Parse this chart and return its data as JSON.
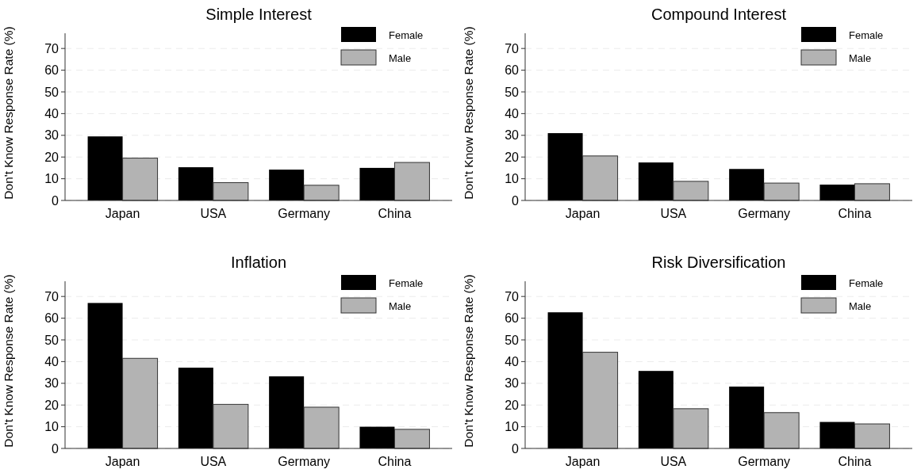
{
  "chart_data": [
    {
      "type": "bar",
      "title": "Simple Interest",
      "ylabel": "Don't Know Response Rate (%)",
      "categories": [
        "Japan",
        "USA",
        "Germany",
        "China"
      ],
      "series": [
        {
          "name": "Female",
          "color": "#000000",
          "values": [
            29.5,
            15.3,
            14.2,
            15
          ]
        },
        {
          "name": "Male",
          "color": "#b3b3b3",
          "values": [
            19.5,
            8.2,
            7,
            17.5
          ]
        }
      ],
      "ylim": [
        0,
        77
      ],
      "yticks": [
        0,
        10,
        20,
        30,
        40,
        50,
        60,
        70
      ],
      "grid": "y",
      "legend": "top right"
    },
    {
      "type": "bar",
      "title": "Compound Interest",
      "ylabel": "Don't Know Response Rate (%)",
      "categories": [
        "Japan",
        "USA",
        "Germany",
        "China"
      ],
      "series": [
        {
          "name": "Female",
          "color": "#000000",
          "values": [
            31,
            17.5,
            14.5,
            7.3
          ]
        },
        {
          "name": "Male",
          "color": "#b3b3b3",
          "values": [
            20.5,
            8.8,
            8,
            7.7
          ]
        }
      ],
      "ylim": [
        0,
        77
      ],
      "yticks": [
        0,
        10,
        20,
        30,
        40,
        50,
        60,
        70
      ],
      "grid": "y",
      "legend": "top right"
    },
    {
      "type": "bar",
      "title": "Inflation",
      "ylabel": "Don't Know Response Rate (%)",
      "categories": [
        "Japan",
        "USA",
        "Germany",
        "China"
      ],
      "series": [
        {
          "name": "Female",
          "color": "#000000",
          "values": [
            67,
            37.2,
            33.2,
            10
          ]
        },
        {
          "name": "Male",
          "color": "#b3b3b3",
          "values": [
            41.5,
            20.3,
            19,
            8.8
          ]
        }
      ],
      "ylim": [
        0,
        77
      ],
      "yticks": [
        0,
        10,
        20,
        30,
        40,
        50,
        60,
        70
      ],
      "grid": "y",
      "legend": "top right"
    },
    {
      "type": "bar",
      "title": "Risk Diversification",
      "ylabel": "Don't Know Response Rate (%)",
      "categories": [
        "Japan",
        "USA",
        "Germany",
        "China"
      ],
      "series": [
        {
          "name": "Female",
          "color": "#000000",
          "values": [
            62.7,
            35.7,
            28.5,
            12.2
          ]
        },
        {
          "name": "Male",
          "color": "#b3b3b3",
          "values": [
            44.3,
            18.3,
            16.5,
            11.3
          ]
        }
      ],
      "ylim": [
        0,
        77
      ],
      "yticks": [
        0,
        10,
        20,
        30,
        40,
        50,
        60,
        70
      ],
      "grid": "y",
      "legend": "top right"
    }
  ]
}
